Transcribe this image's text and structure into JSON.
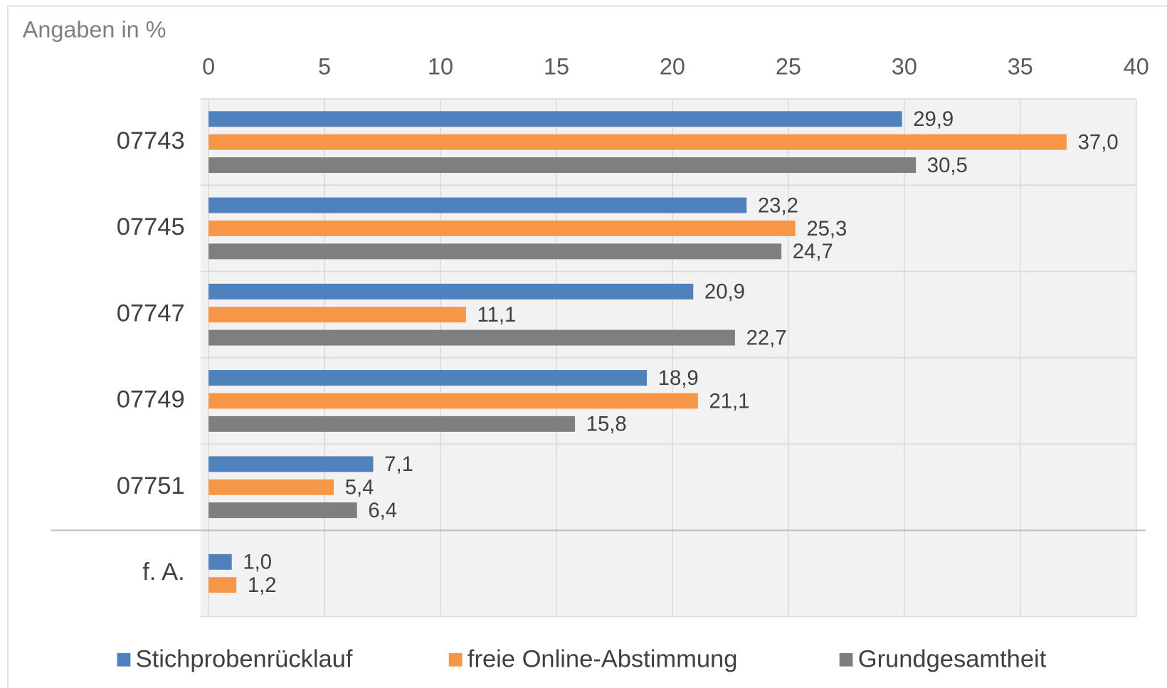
{
  "chart_data": {
    "type": "bar",
    "orientation": "horizontal",
    "axis_label": "Angaben in %",
    "categories": [
      "07743",
      "07745",
      "07747",
      "07749",
      "07751",
      "f. A."
    ],
    "series": [
      {
        "name": "Stichprobenrücklauf",
        "color": "#4f81bd",
        "values": [
          29.9,
          23.2,
          20.9,
          18.9,
          7.1,
          1.0
        ],
        "value_labels": [
          "29,9",
          "23,2",
          "20,9",
          "18,9",
          "7,1",
          "1,0"
        ]
      },
      {
        "name": "freie Online-Abstimmung",
        "color": "#f79646",
        "values": [
          37.0,
          25.3,
          11.1,
          21.1,
          5.4,
          1.2
        ],
        "value_labels": [
          "37,0",
          "25,3",
          "11,1",
          "21,1",
          "5,4",
          "1,2"
        ]
      },
      {
        "name": "Grundgesamtheit",
        "color": "#7f7f7f",
        "values": [
          30.5,
          24.7,
          22.7,
          15.8,
          6.4,
          null
        ],
        "value_labels": [
          "30,5",
          "24,7",
          "22,7",
          "15,8",
          "6,4",
          null
        ]
      }
    ],
    "xlim": [
      0,
      40
    ],
    "xticks": [
      0,
      5,
      10,
      15,
      20,
      25,
      30,
      35,
      40
    ],
    "grid": true,
    "legend": "bottom"
  }
}
